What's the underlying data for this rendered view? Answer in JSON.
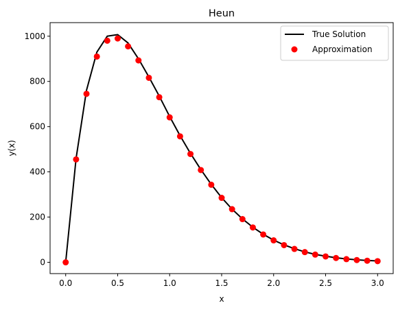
{
  "chart_data": {
    "type": "line",
    "title": "Heun",
    "xlabel": "x",
    "ylabel": "y(x)",
    "xlim": [
      -0.15,
      3.15
    ],
    "ylim": [
      -50,
      1060
    ],
    "xticks": [
      0.0,
      0.5,
      1.0,
      1.5,
      2.0,
      2.5,
      3.0
    ],
    "xtick_labels": [
      "0.0",
      "0.5",
      "1.0",
      "1.5",
      "2.0",
      "2.5",
      "3.0"
    ],
    "yticks": [
      0,
      200,
      400,
      600,
      800,
      1000
    ],
    "ytick_labels": [
      "0",
      "200",
      "400",
      "600",
      "800",
      "1000"
    ],
    "grid": false,
    "legend_position": "top-right",
    "series": [
      {
        "name": "True Solution",
        "kind": "line",
        "color": "#000000",
        "x": [
          0.0,
          0.1,
          0.2,
          0.3,
          0.4,
          0.5,
          0.6,
          0.7,
          0.8,
          0.9,
          1.0,
          1.1,
          1.2,
          1.3,
          1.4,
          1.5,
          1.6,
          1.7,
          1.8,
          1.9,
          2.0,
          2.1,
          2.2,
          2.3,
          2.4,
          2.5,
          2.6,
          2.7,
          2.8,
          2.9,
          3.0
        ],
        "y": [
          0,
          460,
          760,
          930,
          1000,
          1007,
          970,
          900,
          820,
          735,
          645,
          560,
          482,
          410,
          345,
          286,
          235,
          192,
          155,
          124,
          98,
          77,
          60,
          46,
          35,
          27,
          20,
          15,
          11,
          8,
          6
        ]
      },
      {
        "name": "Approximation",
        "kind": "scatter",
        "color": "#ff0000",
        "x": [
          0.0,
          0.1,
          0.2,
          0.3,
          0.4,
          0.5,
          0.6,
          0.7,
          0.8,
          0.9,
          1.0,
          1.1,
          1.2,
          1.3,
          1.4,
          1.5,
          1.6,
          1.7,
          1.8,
          1.9,
          2.0,
          2.1,
          2.2,
          2.3,
          2.4,
          2.5,
          2.6,
          2.7,
          2.8,
          2.9,
          3.0
        ],
        "y": [
          0,
          455,
          745,
          910,
          980,
          990,
          955,
          893,
          816,
          730,
          641,
          557,
          479,
          408,
          343,
          285,
          235,
          191,
          154,
          123,
          97,
          76,
          59,
          45,
          34,
          26,
          19,
          14,
          10,
          7,
          5
        ]
      }
    ]
  }
}
